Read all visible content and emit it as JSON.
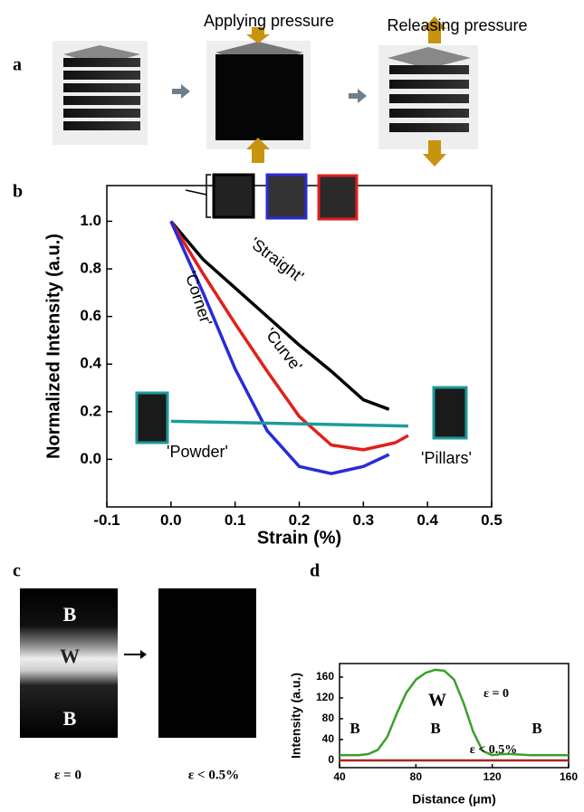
{
  "panel_labels": [
    "a",
    "b",
    "c",
    "d"
  ],
  "diagram": {
    "labels": [
      "Applying pressure",
      "Releasing pressure"
    ]
  },
  "images": {
    "labels": [
      "B",
      "W",
      "B"
    ],
    "captions": [
      "ε = 0",
      "ε < 0.5%"
    ]
  },
  "chart_data": [
    {
      "type": "line",
      "x_label": "Strain (%)",
      "y_label": "Normalized Intensity (a.u.)",
      "xlim": [
        -0.1,
        0.5
      ],
      "ylim": [
        -0.2,
        1.15
      ],
      "xticks": [
        -0.1,
        {
          "value": 0,
          "label": "0.0"
        },
        0.1,
        0.2,
        0.3,
        0.4,
        0.5
      ],
      "yticks": [
        {
          "value": 0,
          "label": "0.0"
        },
        0.2,
        0.4,
        0.6,
        0.8,
        {
          "value": 1,
          "label": "1.0"
        }
      ],
      "series": [
        {
          "name": "'Straight'",
          "color": "#000000",
          "x": [
            0,
            0.05,
            0.1,
            0.15,
            0.2,
            0.25,
            0.3,
            0.34
          ],
          "values": [
            1.0,
            0.84,
            0.72,
            0.6,
            0.48,
            0.37,
            0.25,
            0.21
          ]
        },
        {
          "name": "'Curve'",
          "color": "#e0201b",
          "x": [
            0,
            0.05,
            0.1,
            0.15,
            0.2,
            0.25,
            0.3,
            0.35,
            0.37
          ],
          "values": [
            1.0,
            0.78,
            0.57,
            0.37,
            0.18,
            0.06,
            0.04,
            0.07,
            0.1
          ]
        },
        {
          "name": "'Corner'",
          "color": "#2a2ad8",
          "x": [
            0,
            0.05,
            0.1,
            0.15,
            0.2,
            0.25,
            0.3,
            0.34
          ],
          "values": [
            1.0,
            0.7,
            0.38,
            0.12,
            -0.03,
            -0.06,
            -0.03,
            0.02
          ]
        },
        {
          "name": "'Powder'",
          "color": "#1f9a9a",
          "x": [
            0,
            0.37
          ],
          "values": [
            0.16,
            0.14
          ]
        }
      ],
      "annotations": [
        "'Pillars'"
      ]
    },
    {
      "type": "line",
      "x_label": "Distance (μm)",
      "y_label": "Intensity (a.u.)",
      "xlim": [
        40,
        160
      ],
      "ylim": [
        -14,
        186
      ],
      "xticks": [
        40,
        80,
        120,
        160
      ],
      "yticks": [
        0,
        40,
        80,
        120,
        160
      ],
      "series": [
        {
          "name": "ε = 0",
          "color": "#3aa02a",
          "x": [
            40,
            50,
            55,
            60,
            65,
            70,
            75,
            80,
            85,
            90,
            95,
            100,
            105,
            110,
            115,
            120,
            125,
            130,
            140,
            150,
            160
          ],
          "values": [
            10,
            10,
            12,
            20,
            45,
            90,
            130,
            155,
            168,
            174,
            172,
            155,
            110,
            55,
            18,
            10,
            12,
            12,
            10,
            10,
            10
          ]
        },
        {
          "name": "ε < 0.5%",
          "color": "#b02020",
          "x": [
            40,
            160
          ],
          "values": [
            0,
            0
          ]
        }
      ],
      "annotations": [
        "W",
        "B",
        "B",
        "B"
      ]
    }
  ]
}
